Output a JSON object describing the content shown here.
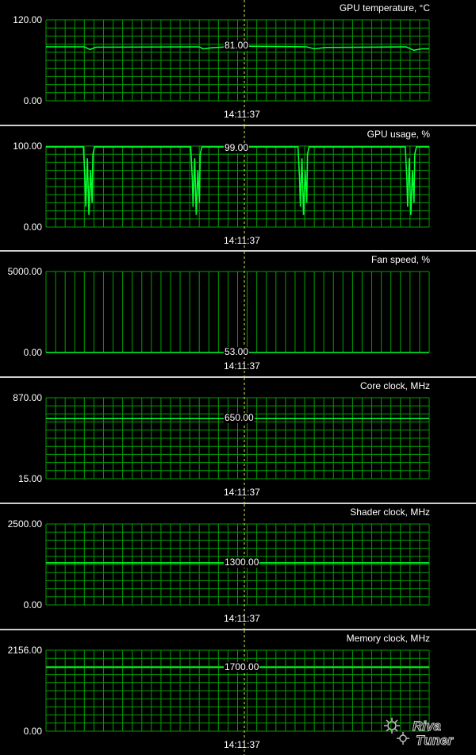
{
  "panels": [
    {
      "id": "temp",
      "title": "GPU temperature, °C",
      "max_label": "120.00",
      "min_label": "0.00",
      "ymin": 0,
      "ymax": 120,
      "current": "81.00",
      "current_value": 81,
      "time": "14:11:37",
      "kind": "flat",
      "series": [
        {
          "x": 0,
          "y": 80
        },
        {
          "x": 0.1,
          "y": 80
        },
        {
          "x": 0.115,
          "y": 76
        },
        {
          "x": 0.13,
          "y": 79.5
        },
        {
          "x": 0.4,
          "y": 80
        },
        {
          "x": 0.41,
          "y": 77
        },
        {
          "x": 0.43,
          "y": 78.5
        },
        {
          "x": 0.5,
          "y": 81
        },
        {
          "x": 0.68,
          "y": 80
        },
        {
          "x": 0.7,
          "y": 77
        },
        {
          "x": 0.73,
          "y": 79
        },
        {
          "x": 0.94,
          "y": 80
        },
        {
          "x": 0.96,
          "y": 75
        },
        {
          "x": 0.98,
          "y": 77
        },
        {
          "x": 1,
          "y": 77
        }
      ]
    },
    {
      "id": "usage",
      "title": "GPU usage, %",
      "max_label": "100.00",
      "min_label": "0.00",
      "ymin": 0,
      "ymax": 100,
      "current": "99.00",
      "current_value": 99,
      "time": "14:11:37",
      "kind": "dips",
      "dips": [
        0.11,
        0.39,
        0.67,
        0.95
      ]
    },
    {
      "id": "fan",
      "title": "Fan speed, %",
      "max_label": "5000.00",
      "min_label": "0.00",
      "ymin": 0,
      "ymax": 5000,
      "current": "53.00",
      "current_value": 53,
      "time": "14:11:37",
      "kind": "spikes"
    },
    {
      "id": "core",
      "title": "Core clock, MHz",
      "max_label": "870.00",
      "min_label": "15.00",
      "ymin": 15,
      "ymax": 870,
      "current": "650.00",
      "current_value": 650,
      "time": "14:11:37",
      "kind": "line"
    },
    {
      "id": "shader",
      "title": "Shader clock, MHz",
      "max_label": "2500.00",
      "min_label": "0.00",
      "ymin": 0,
      "ymax": 2500,
      "current": "1300.00",
      "current_value": 1300,
      "time": "14:11:37",
      "kind": "line"
    },
    {
      "id": "mem",
      "title": "Memory clock, MHz",
      "max_label": "2156.00",
      "min_label": "0.00",
      "ymin": 0,
      "ymax": 2156,
      "current": "1700.00",
      "current_value": 1700,
      "time": "14:11:37",
      "kind": "line"
    }
  ],
  "colors": {
    "grid": "#00a000",
    "trace": "#00ff30",
    "cursor": "#e6e64a",
    "background": "#000000",
    "separator": "#cfcfcf"
  },
  "logo_text": "RivaTuner"
}
